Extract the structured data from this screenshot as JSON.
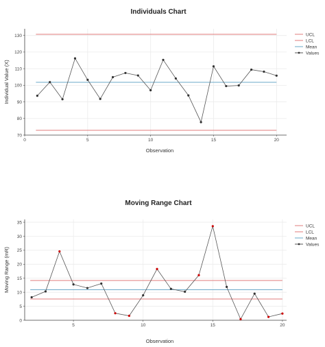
{
  "colors": {
    "ucl": "#e07b7b",
    "lcl": "#e07b7b",
    "mean": "#6aa8c8",
    "values": "#555555",
    "point": "#333333",
    "out_of_control_point": "#cc0000",
    "grid": "#ebebeb",
    "axis": "#444444"
  },
  "chart_data": [
    {
      "type": "line",
      "title": "Individuals Chart",
      "xlabel": "Observation",
      "ylabel": "Individual Value (X)",
      "xlim": [
        0,
        20.8
      ],
      "ylim": [
        70,
        134
      ],
      "xticks": [
        0,
        5,
        10,
        15,
        20
      ],
      "yticks": [
        70,
        80,
        90,
        100,
        110,
        120,
        130
      ],
      "grid": true,
      "legend_position": "right",
      "legend": [
        "UCL",
        "LCL",
        "Mean",
        "Values"
      ],
      "ucl": 130.7,
      "lcl": 72.9,
      "mean": 101.8,
      "x": [
        1,
        2,
        3,
        4,
        5,
        6,
        7,
        8,
        9,
        10,
        11,
        12,
        13,
        14,
        15,
        16,
        17,
        18,
        19,
        20
      ],
      "values": [
        93.7,
        101.9,
        91.6,
        116.2,
        103.3,
        91.8,
        104.9,
        107.4,
        105.9,
        97.0,
        115.3,
        104.1,
        93.9,
        77.8,
        111.4,
        99.5,
        99.9,
        109.4,
        108.2,
        105.8
      ],
      "out_of_control": []
    },
    {
      "type": "line",
      "title": "Moving Range Chart",
      "xlabel": "Observation",
      "ylabel": "Moving Range (mR)",
      "xlim": [
        1.5,
        20.3
      ],
      "ylim": [
        0,
        36
      ],
      "xticks": [
        5,
        10,
        15,
        20
      ],
      "yticks": [
        0,
        5,
        10,
        15,
        20,
        25,
        30,
        35
      ],
      "grid": true,
      "legend_position": "right",
      "legend": [
        "UCL",
        "LCL",
        "Mean",
        "Values"
      ],
      "ucl": 14.2,
      "lcl": 7.6,
      "mean": 10.9,
      "x": [
        2,
        3,
        4,
        5,
        6,
        7,
        8,
        9,
        10,
        11,
        12,
        13,
        14,
        15,
        16,
        17,
        18,
        19,
        20
      ],
      "values": [
        8.2,
        10.3,
        24.6,
        12.8,
        11.5,
        13.1,
        2.5,
        1.6,
        8.9,
        18.3,
        11.2,
        10.2,
        16.1,
        33.6,
        11.9,
        0.4,
        9.5,
        1.2,
        2.4
      ],
      "out_of_control": [
        4,
        8,
        9,
        11,
        14,
        15,
        17,
        19,
        20
      ]
    }
  ]
}
